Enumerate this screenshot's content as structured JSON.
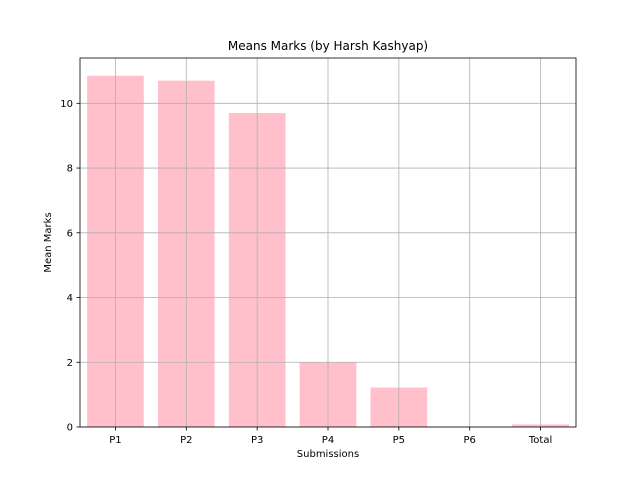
{
  "chart_data": {
    "type": "bar",
    "title": "Means Marks (by Harsh Kashyap)",
    "xlabel": "Submissions",
    "ylabel": "Mean Marks",
    "categories": [
      "P1",
      "P2",
      "P3",
      "P4",
      "P5",
      "P6",
      "Total"
    ],
    "values": [
      10.85,
      10.7,
      9.7,
      2.0,
      1.22,
      0,
      0.08
    ],
    "ylim": [
      0,
      11.4
    ],
    "yticks": [
      "0",
      "2",
      "4",
      "6",
      "8",
      "10"
    ],
    "bar_color": "#ffc0cb",
    "grid": true,
    "legend": "none"
  }
}
